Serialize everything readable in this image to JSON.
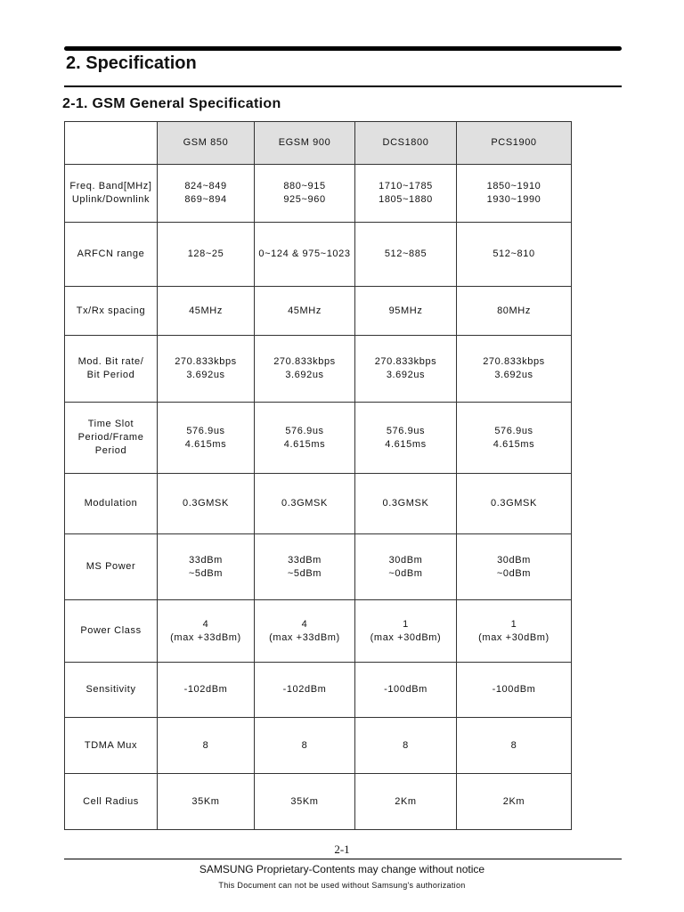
{
  "heading": "2. Specification",
  "subheading": "2-1. GSM General Specification",
  "table": {
    "columns": [
      "",
      "GSM 850",
      "EGSM 900",
      "DCS1800",
      "PCS1900"
    ],
    "rows": [
      {
        "label": "Freq. Band[MHz]\nUplink/Downlink",
        "values": [
          "824~849\n869~894",
          "880~915\n925~960",
          "1710~1785\n1805~1880",
          "1850~1910\n1930~1990"
        ]
      },
      {
        "label": "ARFCN range",
        "values": [
          "128~25",
          "0~124 & 975~1023",
          "512~885",
          "512~810"
        ]
      },
      {
        "label": "Tx/Rx spacing",
        "values": [
          "45MHz",
          "45MHz",
          "95MHz",
          "80MHz"
        ]
      },
      {
        "label": "Mod. Bit rate/\nBit Period",
        "values": [
          "270.833kbps\n3.692us",
          "270.833kbps\n3.692us",
          "270.833kbps\n3.692us",
          "270.833kbps\n3.692us"
        ]
      },
      {
        "label": "Time Slot\nPeriod/Frame\nPeriod",
        "values": [
          "576.9us\n4.615ms",
          "576.9us\n4.615ms",
          "576.9us\n4.615ms",
          "576.9us\n4.615ms"
        ]
      },
      {
        "label": "Modulation",
        "values": [
          "0.3GMSK",
          "0.3GMSK",
          "0.3GMSK",
          "0.3GMSK"
        ]
      },
      {
        "label": "MS Power",
        "values": [
          "33dBm\n~5dBm",
          "33dBm\n~5dBm",
          "30dBm\n~0dBm",
          "30dBm\n~0dBm"
        ]
      },
      {
        "label": "Power Class",
        "values": [
          "4\n(max +33dBm)",
          "4\n(max +33dBm)",
          "1\n(max +30dBm)",
          "1\n(max +30dBm)"
        ]
      },
      {
        "label": "Sensitivity",
        "values": [
          "-102dBm",
          "-102dBm",
          "-100dBm",
          "-100dBm"
        ]
      },
      {
        "label": "TDMA Mux",
        "values": [
          "8",
          "8",
          "8",
          "8"
        ]
      },
      {
        "label": "Cell Radius",
        "values": [
          "35Km",
          "35Km",
          "2Km",
          "2Km"
        ]
      }
    ]
  },
  "footer": {
    "page_number": "2-1",
    "line1": "SAMSUNG Proprietary-Contents may change without notice",
    "line2": "This Document can not be used without Samsung's authorization"
  },
  "colors": {
    "header_fill": "#e0e0e0"
  }
}
